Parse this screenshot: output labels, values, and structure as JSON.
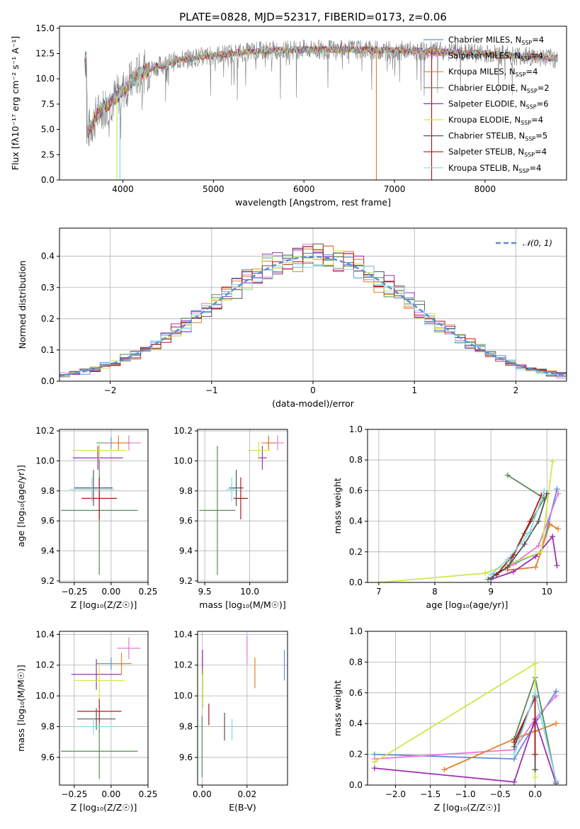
{
  "figure": {
    "title": "PLATE=0828, MJD=52317, FIBERID=0173, z=0.06"
  },
  "models": [
    {
      "name": "Chabrier MILES",
      "nssp": "4",
      "color": "#5b8fd6"
    },
    {
      "name": "Salpeter MILES",
      "nssp": "4",
      "color": "#e37ad6"
    },
    {
      "name": "Kroupa MILES",
      "nssp": "4",
      "color": "#e58025"
    },
    {
      "name": "Chabrier ELODIE",
      "nssp": "2",
      "color": "#5a8a5a"
    },
    {
      "name": "Salpeter ELODIE",
      "nssp": "6",
      "color": "#9b30b0"
    },
    {
      "name": "Kroupa ELODIE",
      "nssp": "4",
      "color": "#cfe848"
    },
    {
      "name": "Chabrier STELIB",
      "nssp": "5",
      "color": "#555555"
    },
    {
      "name": "Salpeter STELIB",
      "nssp": "4",
      "color": "#b01818"
    },
    {
      "name": "Kroupa STELIB",
      "nssp": "4",
      "color": "#86dae6"
    }
  ],
  "chart_data": [
    {
      "id": "spectrum",
      "type": "line",
      "xlabel": "wavelength [Angstrom, rest frame]",
      "ylabel": "Flux [fλ10⁻¹⁷ erg cm⁻² s⁻¹ A⁻¹]",
      "xlim": [
        3300,
        8900
      ],
      "ylim": [
        0,
        15.2
      ],
      "xticks": [
        4000,
        5000,
        6000,
        7000,
        8000
      ],
      "yticks": [
        "0.0",
        "2.5",
        "5.0",
        "7.5",
        "10.0",
        "12.5",
        "15.0"
      ],
      "continuum": {
        "wavelength": [
          3600,
          3700,
          3800,
          3900,
          4000,
          4100,
          4200,
          4400,
          4600,
          4800,
          5000,
          5300,
          5600,
          6000,
          6500,
          7000,
          7500,
          8000,
          8500,
          8800
        ],
        "flux": [
          4.5,
          6.2,
          7.3,
          8.0,
          8.9,
          9.8,
          10.6,
          11.3,
          11.8,
          12.1,
          12.3,
          12.6,
          12.8,
          12.9,
          12.9,
          12.8,
          12.7,
          12.5,
          12.2,
          12.0
        ]
      },
      "sharp_features": [
        {
          "wavelength": 3935,
          "flux": 0,
          "color": "#cfe848"
        },
        {
          "wavelength": 3968,
          "flux": 0,
          "color": "#86dae6"
        },
        {
          "wavelength": 6800,
          "flux": 0,
          "color": "#e58025"
        },
        {
          "wavelength": 7410,
          "flux": 0,
          "color": "#b01818"
        }
      ],
      "legend": "upper-right"
    },
    {
      "id": "residuals",
      "type": "histogram",
      "xlabel": "(data-model)/error",
      "ylabel": "Normed distribution",
      "xlim": [
        -2.5,
        2.5
      ],
      "ylim": [
        0,
        0.49
      ],
      "xticks": [
        "−2",
        "−1",
        "0",
        "1",
        "2"
      ],
      "yticks": [
        "0.0",
        "0.1",
        "0.2",
        "0.3",
        "0.4"
      ],
      "bin_width": 0.1,
      "reference_curve": {
        "label": "𝒩(0, 1)",
        "style": "dashed",
        "color": "#5b8fd6"
      },
      "legend": "upper-right"
    },
    {
      "id": "age_vs_Z",
      "type": "errorbar",
      "xlabel": "Z [log₁₀(Z/Z☉)]",
      "ylabel": "age  [log₁₀(age/yr)]",
      "xlim": [
        -0.35,
        0.25
      ],
      "ylim": [
        9.19,
        10.21
      ],
      "xticks": [
        -0.25,
        0.0,
        0.25
      ],
      "xticklabels": [
        "−0.25",
        "0.00",
        "0.25"
      ],
      "yticks": [
        9.2,
        9.4,
        9.6,
        9.8,
        10.0,
        10.2
      ],
      "yticklabels": [
        "9.2",
        "9.4",
        "9.6",
        "9.8",
        "10.0",
        "10.2"
      ],
      "points": [
        {
          "model": 0,
          "x": 0.0,
          "y": 10.12,
          "xerr": 0.1,
          "yerr": 0.04
        },
        {
          "model": 1,
          "x": 0.12,
          "y": 10.12,
          "xerr": 0.08,
          "yerr": 0.05
        },
        {
          "model": 2,
          "x": 0.05,
          "y": 10.12,
          "xerr": 0.08,
          "yerr": 0.05
        },
        {
          "model": 3,
          "x": -0.08,
          "y": 9.67,
          "xerr": 0.26,
          "yerr": 0.43
        },
        {
          "model": 4,
          "x": -0.09,
          "y": 10.02,
          "xerr": 0.17,
          "yerr": 0.08
        },
        {
          "model": 5,
          "x": -0.08,
          "y": 10.07,
          "xerr": 0.18,
          "yerr": 0.06
        },
        {
          "model": 6,
          "x": -0.12,
          "y": 9.82,
          "xerr": 0.13,
          "yerr": 0.12
        },
        {
          "model": 7,
          "x": -0.08,
          "y": 9.75,
          "xerr": 0.12,
          "yerr": 0.14
        },
        {
          "model": 8,
          "x": -0.13,
          "y": 9.81,
          "xerr": 0.15,
          "yerr": 0.08
        }
      ]
    },
    {
      "id": "age_vs_mass",
      "type": "errorbar",
      "xlabel": "mass [log₁₀(M/M☉)]",
      "ylabel": "",
      "xlim": [
        9.42,
        10.42
      ],
      "ylim": [
        9.19,
        10.21
      ],
      "xticks": [
        9.5,
        10.0
      ],
      "xticklabels": [
        "9.5",
        "10.0"
      ],
      "yticks": [
        9.2,
        9.4,
        9.6,
        9.8,
        10.0,
        10.2
      ],
      "yticklabels": [
        "9.2",
        "9.4",
        "9.6",
        "9.8",
        "10.0",
        "10.2"
      ],
      "points": [
        {
          "model": 0,
          "x": 10.21,
          "y": 10.12,
          "xerr": 0.08,
          "yerr": 0.04
        },
        {
          "model": 1,
          "x": 10.31,
          "y": 10.12,
          "xerr": 0.07,
          "yerr": 0.05
        },
        {
          "model": 2,
          "x": 10.21,
          "y": 10.12,
          "xerr": 0.08,
          "yerr": 0.05
        },
        {
          "model": 3,
          "x": 9.64,
          "y": 9.67,
          "xerr": 0.2,
          "yerr": 0.43
        },
        {
          "model": 4,
          "x": 10.14,
          "y": 10.02,
          "xerr": 0.05,
          "yerr": 0.08
        },
        {
          "model": 5,
          "x": 10.1,
          "y": 10.07,
          "xerr": 0.12,
          "yerr": 0.06
        },
        {
          "model": 6,
          "x": 9.85,
          "y": 9.82,
          "xerr": 0.08,
          "yerr": 0.12
        },
        {
          "model": 7,
          "x": 9.9,
          "y": 9.75,
          "xerr": 0.08,
          "yerr": 0.14
        },
        {
          "model": 8,
          "x": 9.8,
          "y": 9.81,
          "xerr": 0.06,
          "yerr": 0.08
        }
      ]
    },
    {
      "id": "weight_vs_age",
      "type": "line",
      "xlabel": "age  [log₁₀(age/yr)]",
      "ylabel": "mass weight",
      "xlim": [
        6.8,
        10.35
      ],
      "ylim": [
        0,
        1.0
      ],
      "xticks": [
        7,
        8,
        9,
        10
      ],
      "xticklabels": [
        "7",
        "8",
        "9",
        "10"
      ],
      "yticks": [
        0,
        0.2,
        0.4,
        0.6,
        0.8,
        1.0
      ],
      "yticklabels": [
        "0.0",
        "0.2",
        "0.4",
        "0.6",
        "0.8",
        "1.0"
      ],
      "series": [
        {
          "model": 0,
          "x": [
            9.05,
            9.45,
            9.9,
            10.18
          ],
          "y": [
            0.05,
            0.13,
            0.2,
            0.61
          ]
        },
        {
          "model": 1,
          "x": [
            9.0,
            9.4,
            9.85,
            10.2
          ],
          "y": [
            0.03,
            0.12,
            0.24,
            0.58
          ]
        },
        {
          "model": 2,
          "x": [
            9.3,
            9.8,
            10.05,
            10.2
          ],
          "y": [
            0.08,
            0.1,
            0.38,
            0.35
          ]
        },
        {
          "model": 3,
          "x": [
            8.95,
            9.3,
            9.6,
            9.95,
            9.3
          ],
          "y": [
            0.02,
            0.1,
            0.32,
            0.55,
            0.7
          ]
        },
        {
          "model": 4,
          "x": [
            9.0,
            9.4,
            9.8,
            10.1,
            10.18
          ],
          "y": [
            0.02,
            0.07,
            0.17,
            0.3,
            0.11
          ]
        },
        {
          "model": 5,
          "x": [
            7.0,
            8.9,
            9.9,
            10.1
          ],
          "y": [
            0.0,
            0.06,
            0.2,
            0.79
          ]
        },
        {
          "model": 6,
          "x": [
            9.0,
            9.3,
            9.6,
            9.85,
            10.0
          ],
          "y": [
            0.03,
            0.1,
            0.25,
            0.4,
            0.58
          ]
        },
        {
          "model": 7,
          "x": [
            9.1,
            9.4,
            9.7,
            9.9
          ],
          "y": [
            0.05,
            0.18,
            0.4,
            0.57
          ]
        },
        {
          "model": 8,
          "x": [
            9.0,
            9.3,
            9.7,
            9.95
          ],
          "y": [
            0.05,
            0.15,
            0.33,
            0.6
          ]
        }
      ]
    },
    {
      "id": "mass_vs_Z",
      "type": "errorbar",
      "xlabel": "Z [log₁₀(Z/Z☉)]",
      "ylabel": "mass [log₁₀(M/M☉)]",
      "xlim": [
        -0.35,
        0.25
      ],
      "ylim": [
        9.42,
        10.42
      ],
      "xticks": [
        -0.25,
        0.0,
        0.25
      ],
      "xticklabels": [
        "−0.25",
        "0.00",
        "0.25"
      ],
      "yticks": [
        9.6,
        9.8,
        10.0,
        10.2,
        10.4
      ],
      "yticklabels": [
        "9.6",
        "9.8",
        "10.0",
        "10.2",
        "10.4"
      ],
      "points": [
        {
          "model": 0,
          "x": 0.0,
          "y": 10.21,
          "xerr": 0.1,
          "yerr": 0.04
        },
        {
          "model": 1,
          "x": 0.12,
          "y": 10.31,
          "xerr": 0.08,
          "yerr": 0.07
        },
        {
          "model": 2,
          "x": 0.07,
          "y": 10.21,
          "xerr": 0.07,
          "yerr": 0.07
        },
        {
          "model": 3,
          "x": -0.08,
          "y": 9.64,
          "xerr": 0.26,
          "yerr": 0.18
        },
        {
          "model": 4,
          "x": -0.1,
          "y": 10.14,
          "xerr": 0.17,
          "yerr": 0.1
        },
        {
          "model": 5,
          "x": -0.08,
          "y": 10.1,
          "xerr": 0.17,
          "yerr": 0.12
        },
        {
          "model": 6,
          "x": -0.1,
          "y": 9.85,
          "xerr": 0.13,
          "yerr": 0.07
        },
        {
          "model": 7,
          "x": -0.08,
          "y": 9.9,
          "xerr": 0.15,
          "yerr": 0.08
        },
        {
          "model": 8,
          "x": -0.12,
          "y": 9.8,
          "xerr": 0.15,
          "yerr": 0.05
        }
      ]
    },
    {
      "id": "mass_vs_ebv",
      "type": "errorbar",
      "xlabel": "E(B-V)",
      "ylabel": "",
      "xlim": [
        -0.002,
        0.038
      ],
      "ylim": [
        9.42,
        10.42
      ],
      "xticks": [
        0.0,
        0.02
      ],
      "xticklabels": [
        "0.00",
        "0.02"
      ],
      "yticks": [
        9.6,
        9.8,
        10.0,
        10.2,
        10.4
      ],
      "yticklabels": [
        "9.6",
        "9.8",
        "10.0",
        "10.2",
        "10.4"
      ],
      "points": [
        {
          "model": 0,
          "x": 0.0366,
          "y": 10.2,
          "xerr": 0,
          "yerr": 0.1
        },
        {
          "model": 1,
          "x": 0.02,
          "y": 10.3,
          "xerr": 0,
          "yerr": 0.09
        },
        {
          "model": 2,
          "x": 0.0235,
          "y": 10.15,
          "xerr": 0,
          "yerr": 0.1
        },
        {
          "model": 3,
          "x": 0.0,
          "y": 9.67,
          "xerr": 0,
          "yerr": 0.2
        },
        {
          "model": 4,
          "x": 0.0002,
          "y": 10.22,
          "xerr": 0,
          "yerr": 0.08
        },
        {
          "model": 5,
          "x": 0.0004,
          "y": 10.05,
          "xerr": 0,
          "yerr": 0.13
        },
        {
          "model": 6,
          "x": 0.01,
          "y": 9.8,
          "xerr": 0,
          "yerr": 0.09
        },
        {
          "model": 7,
          "x": 0.003,
          "y": 9.88,
          "xerr": 0,
          "yerr": 0.07
        },
        {
          "model": 8,
          "x": 0.0133,
          "y": 9.78,
          "xerr": 0,
          "yerr": 0.07
        }
      ]
    },
    {
      "id": "weight_vs_Z",
      "type": "line",
      "xlabel": "Z [log₁₀(Z/Z☉)]",
      "ylabel": "mass weight",
      "xlim": [
        -2.4,
        0.45
      ],
      "ylim": [
        0,
        1.0
      ],
      "xticks": [
        -2.0,
        -1.5,
        -1.0,
        -0.5,
        0.0
      ],
      "xticklabels": [
        "−2.0",
        "−1.5",
        "−1.0",
        "−0.5",
        "0.0"
      ],
      "yticks": [
        0,
        0.2,
        0.4,
        0.6,
        0.8,
        1.0
      ],
      "yticklabels": [
        "0.0",
        "0.2",
        "0.4",
        "0.6",
        "0.8",
        "1.0"
      ],
      "series": [
        {
          "model": 0,
          "x": [
            -2.3,
            -0.3,
            0.0,
            0.3
          ],
          "y": [
            0.2,
            0.17,
            0.4,
            0.61
          ]
        },
        {
          "model": 1,
          "x": [
            -2.3,
            -0.3,
            0.0,
            0.3
          ],
          "y": [
            0.17,
            0.23,
            0.43,
            0.58
          ]
        },
        {
          "model": 2,
          "x": [
            -1.3,
            -0.3,
            0.0,
            0.3
          ],
          "y": [
            0.1,
            0.3,
            0.35,
            0.4
          ]
        },
        {
          "model": 3,
          "x": [
            -0.3,
            0.0,
            0.3
          ],
          "y": [
            0.3,
            0.7,
            0.02
          ]
        },
        {
          "model": 4,
          "x": [
            -2.3,
            -0.3,
            0.0,
            0.3
          ],
          "y": [
            0.11,
            0.02,
            0.43,
            0.01
          ]
        },
        {
          "model": 5,
          "x": [
            -2.3,
            0.0,
            0.0
          ],
          "y": [
            0.15,
            0.79,
            0.05
          ]
        },
        {
          "model": 6,
          "x": [
            -0.3,
            0.0,
            0.0
          ],
          "y": [
            0.25,
            0.58,
            0.1
          ]
        },
        {
          "model": 7,
          "x": [
            -0.3,
            0.0,
            0.0
          ],
          "y": [
            0.28,
            0.57,
            0.2
          ]
        },
        {
          "model": 8,
          "x": [
            -0.3,
            0.0,
            0.3
          ],
          "y": [
            0.2,
            0.6,
            0.03
          ]
        }
      ]
    }
  ]
}
